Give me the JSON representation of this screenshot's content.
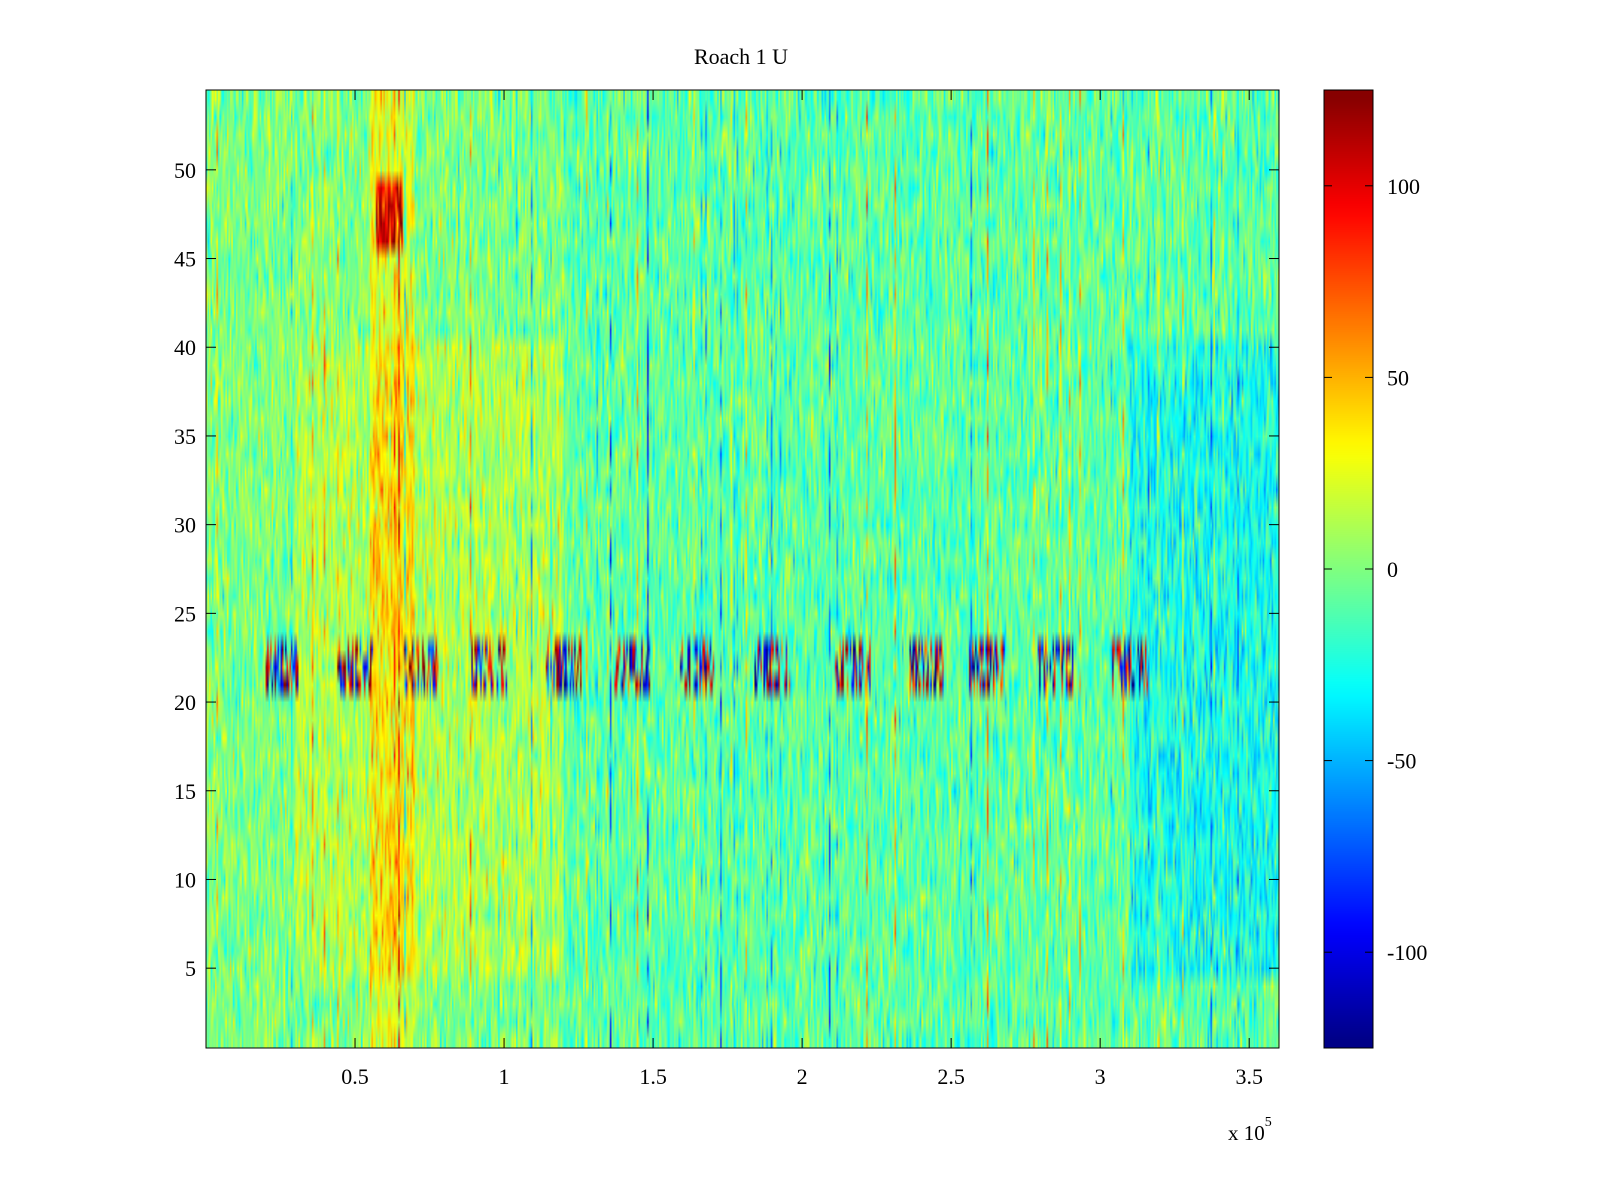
{
  "chart_data": {
    "type": "heatmap",
    "title": "Roach 1 U",
    "xlabel": "",
    "ylabel": "",
    "x_exponent_label": "x 10",
    "x_exponent": "5",
    "xlim": [
      0,
      3.6
    ],
    "ylim": [
      0.5,
      54.5
    ],
    "x_ticks": [
      0.5,
      1,
      1.5,
      2,
      2.5,
      3,
      3.5
    ],
    "x_tick_labels": [
      "0.5",
      "1",
      "1.5",
      "2",
      "2.5",
      "3",
      "3.5"
    ],
    "y_ticks": [
      5,
      10,
      15,
      20,
      25,
      30,
      35,
      40,
      45,
      50
    ],
    "y_tick_labels": [
      "5",
      "10",
      "15",
      "20",
      "25",
      "30",
      "35",
      "40",
      "45",
      "50"
    ],
    "rows": 54,
    "colormap": "jet",
    "clim": [
      -125,
      125
    ],
    "colorbar": {
      "ticks": [
        -100,
        -50,
        0,
        50,
        100
      ],
      "tick_labels": [
        "-100",
        "-50",
        "0",
        "50",
        "100"
      ]
    },
    "regions": [
      {
        "description": "warm band",
        "x_range": [
          0.55,
          0.7
        ],
        "y_range": [
          1,
          54
        ],
        "mean": 25
      },
      {
        "description": "hot patch",
        "x_range": [
          0.57,
          0.66
        ],
        "y_range": [
          46,
          49
        ],
        "mean": 70
      },
      {
        "description": "warm area",
        "x_range": [
          0.3,
          1.2
        ],
        "y_range": [
          5,
          40
        ],
        "mean": 12
      },
      {
        "description": "cool area",
        "x_range": [
          1.2,
          3.6
        ],
        "y_range": [
          1,
          54
        ],
        "mean": -8
      },
      {
        "description": "cold band",
        "x_range": [
          3.1,
          3.6
        ],
        "y_range": [
          5,
          40
        ],
        "mean": -18
      },
      {
        "description": "burst band",
        "x_range": [
          0.2,
          3.6
        ],
        "y_range": [
          21,
          23
        ],
        "bursts_x": [
          0.25,
          0.5,
          0.72,
          0.95,
          1.2,
          1.43,
          1.65,
          1.9,
          2.17,
          2.42,
          2.62,
          2.85,
          3.1
        ],
        "burst_amplitude": 120
      }
    ],
    "background_mean": 0,
    "noise_sd": 18
  }
}
